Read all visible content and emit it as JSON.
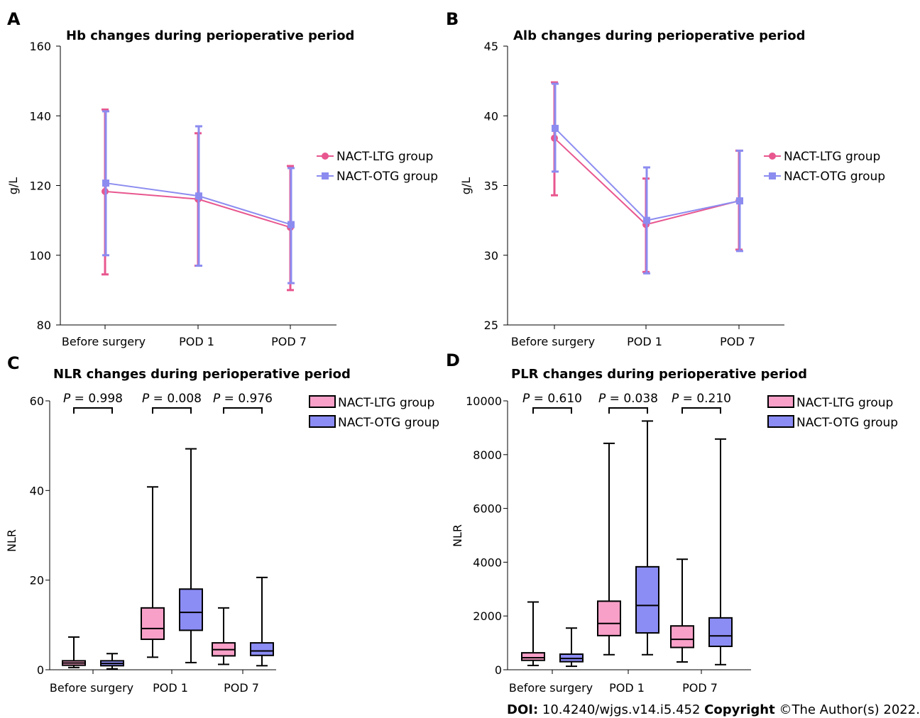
{
  "colors": {
    "ltg": "#e8578f",
    "otg": "#8c8cf0",
    "ltg_box": "#f9a0c8",
    "otg_box": "#8c8cf5",
    "bracket": "#000000"
  },
  "footer": {
    "doi_label": "DOI:",
    "doi_value": "10.4240/wjgs.v14.i5.452",
    "copyright_label": "Copyright",
    "copyright_value": "©The Author(s) 2022."
  },
  "chart_data": [
    {
      "panel": "A",
      "type": "line",
      "title": "Hb changes during perioperative period",
      "xlabel": "",
      "ylabel": "g/L",
      "ylim": [
        80,
        160
      ],
      "yticks": [
        80,
        100,
        120,
        140,
        160
      ],
      "categories": [
        "Before surgery",
        "POD 1",
        "POD 7"
      ],
      "legend_position": "right",
      "series": [
        {
          "name": "NACT-LTG group",
          "marker": "circle",
          "color": "#e8578f",
          "values": [
            118.3,
            116.1,
            108.0
          ],
          "err_low": [
            94.5,
            97.0,
            90.0
          ],
          "err_high": [
            141.8,
            135.0,
            125.6
          ]
        },
        {
          "name": "NACT-OTG group",
          "marker": "square",
          "color": "#8c8cf0",
          "values": [
            120.7,
            117.0,
            108.8
          ],
          "err_low": [
            100.0,
            97.0,
            92.0
          ],
          "err_high": [
            141.3,
            137.0,
            125.0
          ]
        }
      ]
    },
    {
      "panel": "B",
      "type": "line",
      "title": "Alb changes during perioperative period",
      "xlabel": "",
      "ylabel": "g/L",
      "ylim": [
        25,
        45
      ],
      "yticks": [
        25,
        30,
        35,
        40,
        45
      ],
      "categories": [
        "Before surgery",
        "POD 1",
        "POD 7"
      ],
      "legend_position": "right",
      "series": [
        {
          "name": "NACT-LTG group",
          "marker": "circle",
          "color": "#e8578f",
          "values": [
            38.4,
            32.2,
            33.9
          ],
          "err_low": [
            34.3,
            28.8,
            30.4
          ],
          "err_high": [
            42.4,
            35.5,
            37.5
          ]
        },
        {
          "name": "NACT-OTG group",
          "marker": "square",
          "color": "#8c8cf0",
          "values": [
            39.1,
            32.5,
            33.9
          ],
          "err_low": [
            36.0,
            28.7,
            30.3
          ],
          "err_high": [
            42.3,
            36.3,
            37.5
          ]
        }
      ]
    },
    {
      "panel": "C",
      "type": "box",
      "title": "NLR changes during perioperative period",
      "xlabel": "",
      "ylabel": "NLR",
      "ylim": [
        0,
        60
      ],
      "yticks": [
        0,
        20,
        40,
        60
      ],
      "categories": [
        "Before surgery",
        "POD 1",
        "POD 7"
      ],
      "legend_position": "top-right",
      "p_values": [
        "0.998",
        "0.008",
        "0.976"
      ],
      "p_prefix": "P",
      "p_sep": "=",
      "series": [
        {
          "name": "NACT-LTG group",
          "color": "#f9a0c8",
          "boxes": [
            {
              "min": 0.5,
              "q1": 1.0,
              "median": 1.5,
              "q3": 2.0,
              "max": 7.3
            },
            {
              "min": 2.8,
              "q1": 6.8,
              "median": 9.2,
              "q3": 13.8,
              "max": 40.8
            },
            {
              "min": 1.2,
              "q1": 3.1,
              "median": 4.5,
              "q3": 6.0,
              "max": 13.8
            }
          ]
        },
        {
          "name": "NACT-OTG group",
          "color": "#8c8cf5",
          "boxes": [
            {
              "min": 0.2,
              "q1": 0.9,
              "median": 1.4,
              "q3": 2.0,
              "max": 3.6
            },
            {
              "min": 1.6,
              "q1": 8.8,
              "median": 12.8,
              "q3": 18.0,
              "max": 49.3
            },
            {
              "min": 0.9,
              "q1": 3.2,
              "median": 4.2,
              "q3": 6.0,
              "max": 20.6
            }
          ]
        }
      ]
    },
    {
      "panel": "D",
      "type": "box",
      "title": "PLR changes during perioperative period",
      "xlabel": "",
      "ylabel": "NLR",
      "ylim": [
        0,
        10000
      ],
      "yticks": [
        0,
        2000,
        4000,
        6000,
        8000,
        10000
      ],
      "categories": [
        "Before surgery",
        "POD 1",
        "POD 7"
      ],
      "legend_position": "top-right",
      "p_values": [
        "0.610",
        "0.038",
        "0.210"
      ],
      "p_prefix": "P",
      "p_sep": "=",
      "series": [
        {
          "name": "NACT-LTG group",
          "color": "#f9a0c8",
          "boxes": [
            {
              "min": 160,
              "q1": 350,
              "median": 450,
              "q3": 630,
              "max": 2520
            },
            {
              "min": 560,
              "q1": 1270,
              "median": 1720,
              "q3": 2550,
              "max": 8420
            },
            {
              "min": 290,
              "q1": 830,
              "median": 1130,
              "q3": 1630,
              "max": 4110
            }
          ]
        },
        {
          "name": "NACT-OTG group",
          "color": "#8c8cf5",
          "boxes": [
            {
              "min": 130,
              "q1": 300,
              "median": 420,
              "q3": 580,
              "max": 1550
            },
            {
              "min": 560,
              "q1": 1370,
              "median": 2390,
              "q3": 3830,
              "max": 9250
            },
            {
              "min": 190,
              "q1": 870,
              "median": 1260,
              "q3": 1930,
              "max": 8580
            }
          ]
        }
      ]
    }
  ]
}
